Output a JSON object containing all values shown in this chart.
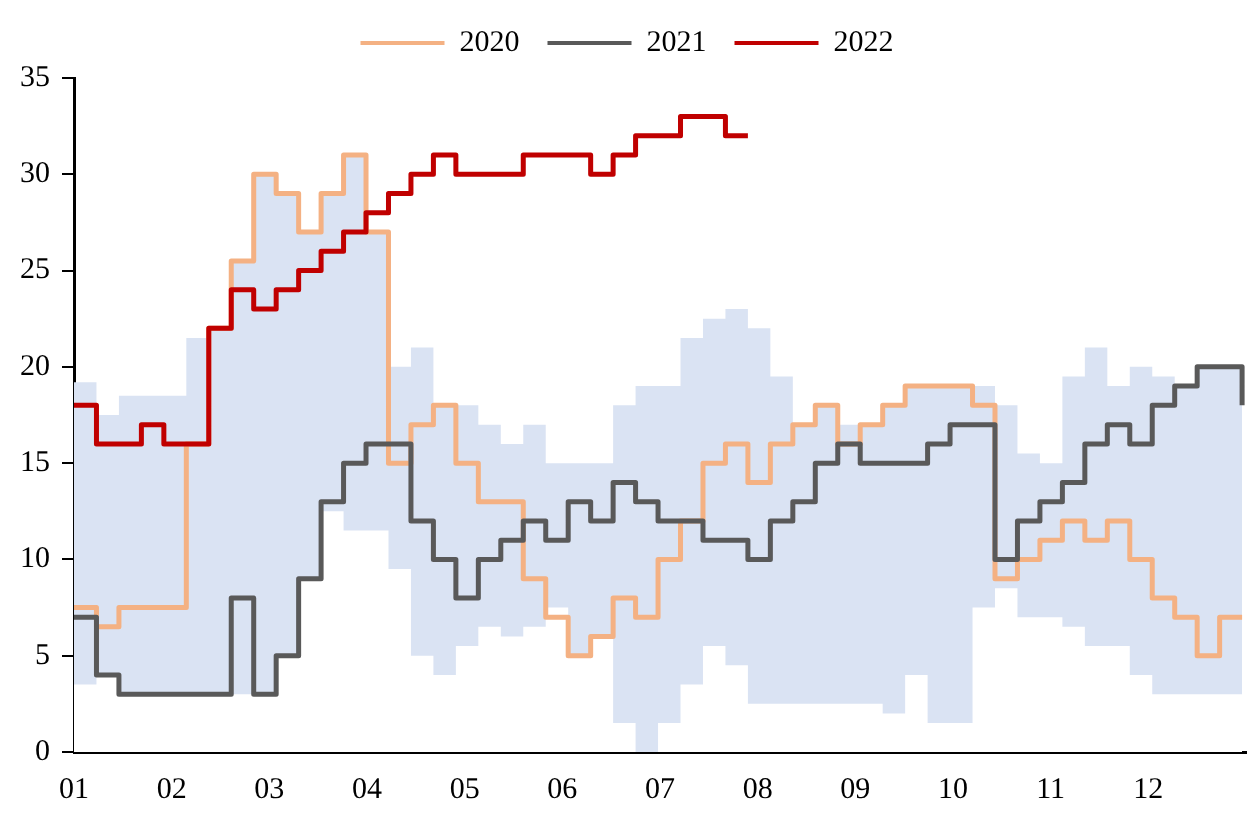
{
  "chart_data": {
    "type": "step",
    "legend": "top",
    "xlim": [
      1,
      13
    ],
    "xticks": [
      {
        "value": 1,
        "label": "01"
      },
      {
        "value": 2,
        "label": "02"
      },
      {
        "value": 3,
        "label": "03"
      },
      {
        "value": 4,
        "label": "04"
      },
      {
        "value": 5,
        "label": "05"
      },
      {
        "value": 6,
        "label": "06"
      },
      {
        "value": 7,
        "label": "07"
      },
      {
        "value": 8,
        "label": "08"
      },
      {
        "value": 9,
        "label": "09"
      },
      {
        "value": 10,
        "label": "10"
      },
      {
        "value": 11,
        "label": "11"
      },
      {
        "value": 12,
        "label": "12"
      }
    ],
    "ylim": [
      0,
      35
    ],
    "yticks": [
      0,
      5,
      10,
      15,
      20,
      25,
      30,
      35
    ],
    "x": [
      1,
      1.23,
      1.46,
      1.69,
      1.92,
      2.15,
      2.38,
      2.61,
      2.84,
      3.07,
      3.3,
      3.53,
      3.76,
      3.99,
      4.22,
      4.45,
      4.68,
      4.91,
      5.14,
      5.37,
      5.6,
      5.83,
      6.06,
      6.29,
      6.52,
      6.75,
      6.98,
      7.21,
      7.44,
      7.67,
      7.9,
      8.13,
      8.36,
      8.59,
      8.82,
      9.05,
      9.28,
      9.51,
      9.74,
      9.97,
      10.2,
      10.43,
      10.66,
      10.89,
      11.12,
      11.35,
      11.58,
      11.81,
      12.04,
      12.27,
      12.5,
      12.73,
      12.96
    ],
    "series": [
      {
        "type": "area",
        "color": "#dae3f3",
        "values": [
          19.2,
          17.5,
          18.5,
          18.5,
          18.5,
          21.5,
          22,
          25.5,
          30,
          29,
          27,
          29,
          31,
          27,
          20,
          21,
          18,
          18,
          17,
          16,
          17,
          15,
          15,
          15,
          18,
          19,
          19,
          21.5,
          22.5,
          23,
          22,
          19.5,
          17,
          18,
          17,
          17,
          18,
          19,
          19,
          19,
          19,
          18,
          15.5,
          15,
          19.5,
          21,
          19,
          20,
          19.5,
          19,
          20,
          20,
          20
        ]
      },
      {
        "type": "area",
        "color": "#ffffff",
        "values": [
          3.5,
          4,
          3,
          3,
          3,
          3,
          3,
          3,
          3,
          5,
          9,
          12.5,
          11.5,
          11.5,
          9.5,
          5,
          4,
          5.5,
          6.5,
          6,
          6.5,
          7.5,
          5,
          6,
          1.5,
          0,
          1.5,
          3.5,
          5.5,
          4.5,
          2.5,
          2.5,
          2.5,
          2.5,
          2.5,
          2.5,
          2,
          4,
          1.5,
          1.5,
          7.5,
          8.5,
          7,
          7,
          6.5,
          5.5,
          5.5,
          4,
          3,
          3,
          3,
          3,
          3
        ]
      },
      {
        "name": "2020",
        "color": "#f4b183",
        "values": [
          7.5,
          6.5,
          7.5,
          7.5,
          7.5,
          16,
          22,
          25.5,
          30,
          29,
          27,
          29,
          31,
          27,
          15,
          17,
          18,
          15,
          13,
          13,
          9,
          7,
          5,
          6,
          8,
          7,
          10,
          12,
          15,
          16,
          14,
          16,
          17,
          18,
          16,
          17,
          18,
          19,
          19,
          19,
          18,
          9,
          10,
          11,
          12,
          11,
          12,
          10,
          8,
          7,
          5,
          7,
          7
        ]
      },
      {
        "name": "2021",
        "color": "#595959",
        "values": [
          7,
          4,
          3,
          3,
          3,
          3,
          3,
          8,
          3,
          5,
          9,
          13,
          15,
          16,
          16,
          12,
          10,
          8,
          10,
          11,
          12,
          11,
          13,
          12,
          14,
          13,
          12,
          12,
          11,
          11,
          10,
          12,
          13,
          15,
          16,
          15,
          15,
          15,
          16,
          17,
          17,
          10,
          12,
          13,
          14,
          16,
          17,
          16,
          18,
          19,
          20,
          20,
          18
        ]
      },
      {
        "name": "2022",
        "color": "#c00000",
        "x": [
          1,
          1.23,
          1.46,
          1.69,
          1.92,
          2.15,
          2.38,
          2.61,
          2.84,
          3.07,
          3.3,
          3.53,
          3.76,
          3.99,
          4.22,
          4.45,
          4.68,
          4.91,
          5.14,
          5.37,
          5.6,
          5.83,
          6.06,
          6.29,
          6.52,
          6.75,
          6.98,
          7.21,
          7.44,
          7.67,
          7.9
        ],
        "values": [
          18,
          16,
          16,
          17,
          16,
          16,
          22,
          24,
          23,
          24,
          25,
          26,
          27,
          28,
          29,
          30,
          31,
          30,
          30,
          30,
          31,
          31,
          31,
          30,
          31,
          32,
          32,
          33,
          33,
          32,
          32
        ]
      }
    ]
  }
}
